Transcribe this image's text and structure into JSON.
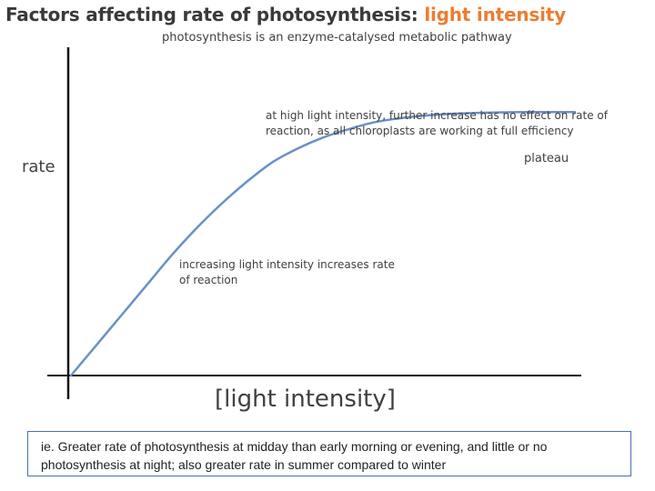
{
  "title": {
    "main": "Factors affecting rate of photosynthesis:",
    "highlight": "light intensity"
  },
  "subtitle": "photosynthesis is an enzyme-catalysed metabolic pathway",
  "chart_data": {
    "type": "line",
    "xlabel": "[light intensity]",
    "ylabel": "rate",
    "x": [
      0,
      0.5,
      1,
      1.5,
      2,
      2.5,
      3,
      3.5,
      4,
      4.5,
      5,
      5.5,
      6,
      6.5,
      7,
      7.5,
      8,
      8.5,
      9,
      9.5,
      10
    ],
    "series": [
      {
        "values": [
          0,
          1.1,
          2.2,
          3.3,
          4.4,
          5.4,
          6.3,
          7.1,
          7.8,
          8.3,
          8.7,
          9.0,
          9.25,
          9.4,
          9.5,
          9.56,
          9.6,
          9.62,
          9.63,
          9.63,
          9.63
        ]
      }
    ],
    "xlim": [
      0,
      10
    ],
    "ylim": [
      0,
      12
    ],
    "grid": false,
    "annotations": [
      "at high light intensity, further increase has no effect on rate of reaction, as all chloroplasts are working at full efficiency",
      "increasing light intensity increases rate of reaction",
      "plateau"
    ],
    "line_color": "#6a90c8",
    "axis_color": "#111111"
  },
  "note": "ie. Greater rate of photosynthesis at midday than early morning or evening, and little or no photosynthesis at night; also greater rate in summer compared to winter"
}
